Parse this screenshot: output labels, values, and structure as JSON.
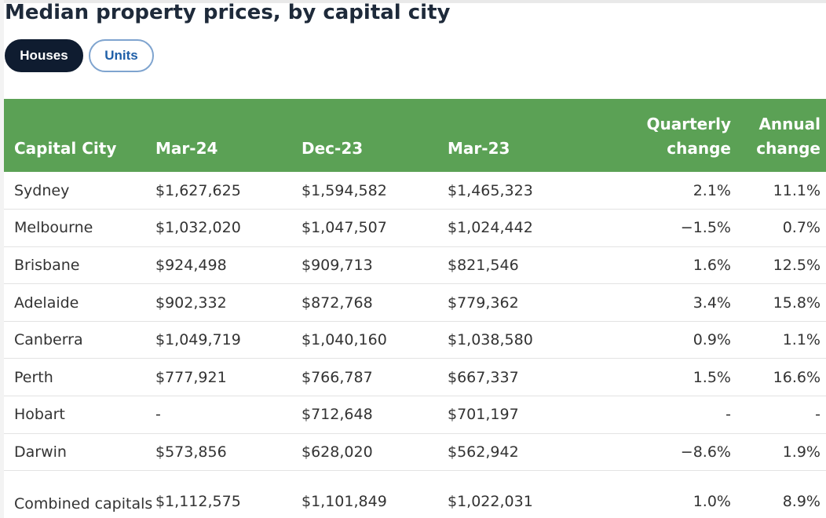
{
  "title": "Median property prices, by capital city",
  "toggles": {
    "houses_label": "Houses",
    "units_label": "Units",
    "active": "Houses"
  },
  "table": {
    "headers": {
      "city": "Capital City",
      "mar24": "Mar-24",
      "dec23": "Dec-23",
      "mar23": "Mar-23",
      "quarterly": "Quarterly change",
      "annual": "Annual change"
    },
    "rows": [
      {
        "city": "Sydney",
        "mar24": "$1,627,625",
        "dec23": "$1,594,582",
        "mar23": "$1,465,323",
        "quarterly": "2.1%",
        "annual": "11.1%"
      },
      {
        "city": "Melbourne",
        "mar24": "$1,032,020",
        "dec23": "$1,047,507",
        "mar23": "$1,024,442",
        "quarterly": "−1.5%",
        "annual": "0.7%"
      },
      {
        "city": "Brisbane",
        "mar24": "$924,498",
        "dec23": "$909,713",
        "mar23": "$821,546",
        "quarterly": "1.6%",
        "annual": "12.5%"
      },
      {
        "city": "Adelaide",
        "mar24": "$902,332",
        "dec23": "$872,768",
        "mar23": "$779,362",
        "quarterly": "3.4%",
        "annual": "15.8%"
      },
      {
        "city": "Canberra",
        "mar24": "$1,049,719",
        "dec23": "$1,040,160",
        "mar23": "$1,038,580",
        "quarterly": "0.9%",
        "annual": "1.1%"
      },
      {
        "city": "Perth",
        "mar24": "$777,921",
        "dec23": "$766,787",
        "mar23": "$667,337",
        "quarterly": "1.5%",
        "annual": "16.6%"
      },
      {
        "city": "Hobart",
        "mar24": "-",
        "dec23": "$712,648",
        "mar23": "$701,197",
        "quarterly": "-",
        "annual": "-"
      },
      {
        "city": "Darwin",
        "mar24": "$573,856",
        "dec23": "$628,020",
        "mar23": "$562,942",
        "quarterly": "−8.6%",
        "annual": "1.9%"
      },
      {
        "city": "Combined capitals",
        "mar24": "$1,112,575",
        "dec23": "$1,101,849",
        "mar23": "$1,022,031",
        "quarterly": "1.0%",
        "annual": "8.9%"
      }
    ]
  },
  "colors": {
    "header_bg": "#5ba155",
    "toggle_active_bg": "#0f1c30",
    "toggle_inactive_text": "#1f5fa8"
  }
}
